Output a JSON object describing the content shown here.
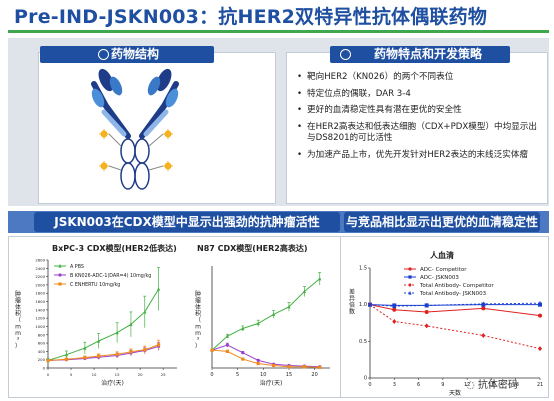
{
  "title": "Pre-IND-JSKN003：抗HER2双特异性抗体偶联药物",
  "structure_panel": {
    "header": "药物结构"
  },
  "features_panel": {
    "header": "药物特点和开发策略",
    "bullets": [
      "靶向HER2（KN026）的两个不同表位",
      "特定位点的偶联，DAR 3-4",
      "更好的血清稳定性具有潜在更优的安全性",
      "在HER2高表达和低表达细胞（CDX+PDX模型）中均显示出与DS8201的可比活性",
      "为加速产品上市，优先开发针对HER2表达的末线泛实体瘤"
    ]
  },
  "section_titles": {
    "left": "JSKN003在CDX模型中显示出强劲的抗肿瘤活性",
    "right": "与竞品相比显示出更优的血清稳定性"
  },
  "watermark": "抗体密码",
  "colors": {
    "brand_blue": "#1f4fa0",
    "accent_green": "#3fa84f"
  },
  "chart_data": [
    {
      "type": "line",
      "title": "BxPC-3 CDX模型(HER2低表达)",
      "xlabel": "治疗(天)",
      "ylabel": "肿瘤体积（mm³）",
      "xlim": [
        0,
        28
      ],
      "ylim": [
        0,
        2600
      ],
      "x_ticks": [
        "0",
        "5",
        "10",
        "15",
        "20",
        "25"
      ],
      "y_ticks": [
        "0",
        "200",
        "400",
        "600",
        "800",
        "1000",
        "1200",
        "1400",
        "1600",
        "1800",
        "2000",
        "2200",
        "2400",
        "2600"
      ],
      "series": [
        {
          "name": "A PBS",
          "color": "#43b043",
          "marker": "triangle",
          "x": [
            0,
            4,
            8,
            11,
            15,
            18,
            21,
            24
          ],
          "y": [
            180,
            320,
            480,
            650,
            850,
            1050,
            1350,
            1900
          ],
          "err": [
            50,
            90,
            140,
            180,
            240,
            300,
            380,
            520
          ]
        },
        {
          "name": "B KN026-ADC-1(DAR=4) 10mg/kg",
          "color": "#9b3fcf",
          "marker": "circle",
          "x": [
            0,
            4,
            8,
            11,
            15,
            18,
            21,
            24
          ],
          "y": [
            180,
            200,
            230,
            260,
            300,
            360,
            420,
            520
          ],
          "err": [
            20,
            30,
            40,
            50,
            60,
            70,
            80,
            100
          ]
        },
        {
          "name": "C ENHERTU 10mg/kg",
          "color": "#f08a1c",
          "marker": "square",
          "x": [
            0,
            4,
            8,
            11,
            15,
            18,
            21,
            24
          ],
          "y": [
            180,
            210,
            250,
            290,
            330,
            390,
            440,
            560
          ],
          "err": [
            20,
            30,
            40,
            50,
            60,
            70,
            90,
            110
          ]
        }
      ]
    },
    {
      "type": "line",
      "title": "N87 CDX模型(HER2高表达)",
      "xlabel": "治疗(天)",
      "ylabel": "肿瘤体积（mm³）",
      "xlim": [
        0,
        23
      ],
      "ylim": [
        0,
        800
      ],
      "x_ticks": [
        "0",
        "5",
        "10",
        "15",
        "20"
      ],
      "series": [
        {
          "color": "#43b043",
          "marker": "triangle",
          "x": [
            0,
            3,
            6,
            9,
            12,
            15,
            18,
            21
          ],
          "y": [
            140,
            250,
            310,
            350,
            420,
            480,
            600,
            700
          ],
          "err": [
            10,
            15,
            20,
            25,
            30,
            35,
            40,
            50
          ]
        },
        {
          "color": "#9b3fcf",
          "marker": "circle",
          "x": [
            0,
            3,
            6,
            9,
            12,
            15,
            18,
            21
          ],
          "y": [
            140,
            180,
            120,
            60,
            30,
            20,
            15,
            10
          ],
          "err": [
            10,
            15,
            10,
            8,
            6,
            5,
            4,
            3
          ]
        },
        {
          "color": "#f08a1c",
          "marker": "square",
          "x": [
            0,
            3,
            6,
            9,
            12,
            15,
            18,
            21
          ],
          "y": [
            140,
            130,
            70,
            35,
            20,
            10,
            10,
            5
          ],
          "err": [
            10,
            10,
            8,
            6,
            5,
            4,
            3,
            3
          ]
        }
      ]
    },
    {
      "type": "line",
      "title": "人血清",
      "xlabel": "天数",
      "ylabel": "差异倍数",
      "xlim": [
        0,
        21
      ],
      "ylim": [
        0,
        1.5
      ],
      "x_ticks": [
        "0",
        "3",
        "6",
        "9",
        "12",
        "15",
        "18",
        "21"
      ],
      "y_ticks": [
        "0",
        "0.5",
        "1.0",
        "1.5"
      ],
      "series": [
        {
          "name": "ADC- Competitor",
          "color": "#e02020",
          "marker": "circle",
          "dashed": false,
          "x": [
            0,
            3,
            7,
            14,
            21
          ],
          "y": [
            1.0,
            0.93,
            0.9,
            0.95,
            0.85
          ]
        },
        {
          "name": "ADC- JSKN003",
          "color": "#1a3fd0",
          "marker": "square",
          "dashed": false,
          "x": [
            0,
            3,
            7,
            14,
            21
          ],
          "y": [
            1.0,
            0.99,
            0.99,
            1.0,
            1.0
          ]
        },
        {
          "name": "Total Antibody- Competitor",
          "color": "#e02020",
          "marker": "diamond",
          "dashed": true,
          "x": [
            0,
            3,
            7,
            14,
            21
          ],
          "y": [
            1.0,
            0.77,
            0.71,
            0.58,
            0.4
          ]
        },
        {
          "name": "Total Antibody- JSKN003",
          "color": "#1a3fd0",
          "marker": "triangle",
          "dashed": true,
          "x": [
            0,
            3,
            7,
            14,
            21
          ],
          "y": [
            1.0,
            0.98,
            0.99,
            1.01,
            1.02
          ]
        }
      ]
    }
  ]
}
